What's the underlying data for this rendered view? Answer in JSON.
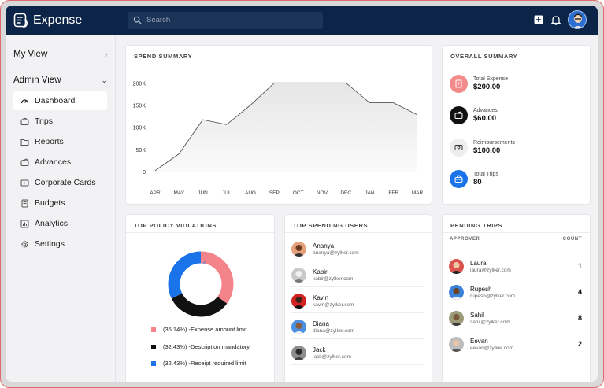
{
  "app": {
    "name": "Expense"
  },
  "search": {
    "placeholder": "Search"
  },
  "sidebar": {
    "my_view": "My View",
    "admin_view": "Admin View",
    "items": [
      {
        "label": "Dashboard",
        "icon": "dashboard-icon"
      },
      {
        "label": "Trips",
        "icon": "trips-icon"
      },
      {
        "label": "Reports",
        "icon": "reports-icon"
      },
      {
        "label": "Advances",
        "icon": "advances-icon"
      },
      {
        "label": "Corporate Cards",
        "icon": "card-icon"
      },
      {
        "label": "Budgets",
        "icon": "budgets-icon"
      },
      {
        "label": "Analytics",
        "icon": "analytics-icon"
      },
      {
        "label": "Settings",
        "icon": "settings-icon"
      }
    ]
  },
  "spend_summary": {
    "title": "SPEND SUMMARY",
    "chart_data": {
      "type": "area",
      "categories": [
        "APR",
        "MAY",
        "JUN",
        "JUL",
        "AUG",
        "SEP",
        "OCT",
        "NOV",
        "DEC",
        "JAN",
        "FEB",
        "MAR"
      ],
      "values": [
        2000,
        40000,
        117000,
        106000,
        150000,
        200000,
        200000,
        200000,
        200000,
        155000,
        155000,
        128000
      ],
      "yticks": [
        "0",
        "50K",
        "100K",
        "150K",
        "200K"
      ],
      "ylim": [
        0,
        220000
      ]
    }
  },
  "overall_summary": {
    "title": "OVERALL SUMMARY",
    "items": [
      {
        "label": "Total Expense",
        "value": "$200.00",
        "icon": "expense-icon",
        "color": "#f28b8b"
      },
      {
        "label": "Advances",
        "value": "$60.00",
        "icon": "wallet-icon",
        "color": "#111111"
      },
      {
        "label": "Reimbursements",
        "value": "$100.00",
        "icon": "cash-icon",
        "color": "#eeeeee"
      },
      {
        "label": "Total Trips",
        "value": "80",
        "icon": "trip-bag-icon",
        "color": "#1a73e8"
      }
    ]
  },
  "policy_violations": {
    "title": "TOP POLICY VIOLATIONS",
    "chart_data": {
      "type": "pie",
      "series": [
        {
          "name": "(35.14%) -Expense amount limit",
          "value": 35.14,
          "color": "#f4838a"
        },
        {
          "name": "(32.43%) -Description mandatory",
          "value": 32.43,
          "color": "#111111"
        },
        {
          "name": "(32.43%) -Receipt required limit",
          "value": 32.43,
          "color": "#1a73e8"
        }
      ]
    }
  },
  "top_users": {
    "title": "TOP SPENDING USERS",
    "users": [
      {
        "name": "Ananya",
        "email": "ananya@zylker.com",
        "color": "#e3a07a"
      },
      {
        "name": "Kabir",
        "email": "kabir@zylker.com",
        "color": "#c9c9c9"
      },
      {
        "name": "Kavin",
        "email": "kavin@zylker.com",
        "color": "#d32222"
      },
      {
        "name": "Diana",
        "email": "diana@zylker.com",
        "color": "#4a8fe0"
      },
      {
        "name": "Jack",
        "email": "jack@zylker.com",
        "color": "#8d8d8d"
      }
    ]
  },
  "pending_trips": {
    "title": "PENDING TRIPS",
    "col_approver": "APPROVER",
    "col_count": "COUNT",
    "rows": [
      {
        "name": "Laura",
        "email": "laura@zylker.com",
        "count": "1",
        "color": "#d9534f"
      },
      {
        "name": "Rupesh",
        "email": "rupesh@zylker.com",
        "count": "4",
        "color": "#3b82d8"
      },
      {
        "name": "Sahil",
        "email": "sahil@zylker.com",
        "count": "8",
        "color": "#9b9b7a"
      },
      {
        "name": "Eevan",
        "email": "eevan@zylker.com",
        "count": "2",
        "color": "#bdbdbd"
      }
    ]
  }
}
